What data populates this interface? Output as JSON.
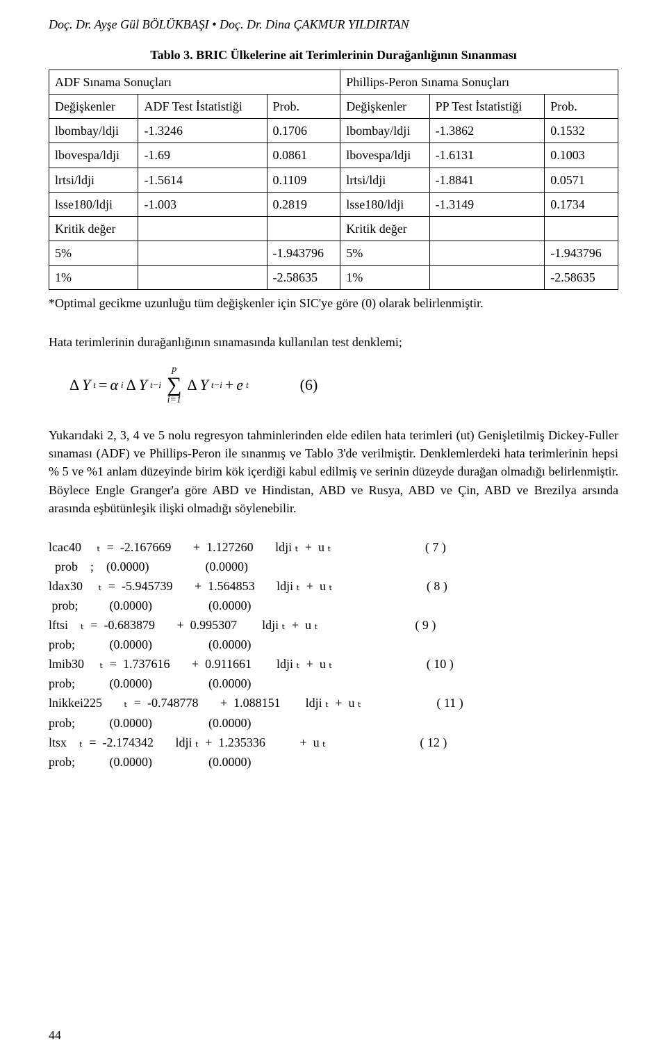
{
  "authors": "Doç. Dr. Ayşe Gül BÖLÜKBAŞI • Doç. Dr. Dina ÇAKMUR YILDIRTAN",
  "table_title": "Tablo 3. BRIC Ülkelerine ait Terimlerinin Durağanlığının Sınanması",
  "table": {
    "type": "table",
    "header_left": "ADF Sınama Sonuçları",
    "header_right": "Phillips-Peron Sınama Sonuçları",
    "columns_left": [
      "Değişkenler",
      "ADF Test İstatistiği",
      "Prob."
    ],
    "columns_right": [
      "Değişkenler",
      "PP Test İstatistiği",
      "Prob."
    ],
    "rows": [
      {
        "l_var": "lbombay/ldji",
        "l_stat": "-1.3246",
        "l_p": "0.1706",
        "r_var": "lbombay/ldji",
        "r_stat": "-1.3862",
        "r_p": "0.1532"
      },
      {
        "l_var": "lbovespa/ldji",
        "l_stat": "-1.69",
        "l_p": "0.0861",
        "r_var": "lbovespa/ldji",
        "r_stat": "-1.6131",
        "r_p": "0.1003"
      },
      {
        "l_var": "lrtsi/ldji",
        "l_stat": "-1.5614",
        "l_p": "0.1109",
        "r_var": "lrtsi/ldji",
        "r_stat": "-1.8841",
        "r_p": "0.0571"
      },
      {
        "l_var": "lsse180/ldji",
        "l_stat": "-1.003",
        "l_p": "0.2819",
        "r_var": "lsse180/ldji",
        "r_stat": "-1.3149",
        "r_p": "0.1734"
      },
      {
        "l_var": "Kritik değer",
        "l_stat": "",
        "l_p": "",
        "r_var": "Kritik değer",
        "r_stat": "",
        "r_p": ""
      },
      {
        "l_var": "5%",
        "l_stat": "",
        "l_p": "-1.943796",
        "r_var": "5%",
        "r_stat": "",
        "r_p": "-1.943796"
      },
      {
        "l_var": "1%",
        "l_stat": "",
        "l_p": "-2.58635",
        "r_var": "1%",
        "r_stat": "",
        "r_p": "-2.58635"
      }
    ]
  },
  "table_note": "*Optimal gecikme uzunluğu tüm değişkenler için SIC'ye göre (0) olarak belirlenmiştir.",
  "para1": "Hata terimlerinin durağanlığının sınamasında kullanılan test denklemi;",
  "equation6": {
    "lhs_dY": "Δ",
    "Y": "Y",
    "t": "t",
    "eq": " = ",
    "alpha": "α",
    "i": "i",
    "dY2": "Δ",
    "tmi": "t−i",
    "sigma_top": "p",
    "sigma_bot": "i=1",
    "dY3": "Δ",
    "plus": " + ",
    "e": "e",
    "num": "(6)"
  },
  "para2": "Yukarıdaki 2, 3, 4 ve 5 nolu regresyon tahminlerinden elde edilen hata terimleri (ut) Genişletilmiş Dickey-Fuller sınaması (ADF) ve Phillips-Peron ile sınanmış ve Tablo 3'de verilmiştir. Denklemlerdeki hata terimlerinin hepsi % 5 ve %1 anlam düzeyinde birim kök içerdiği kabul edilmiş ve serinin düzeyde durağan olmadığı belirlenmiştir. Böylece Engle Granger'a göre ABD ve Hindistan, ABD ve Rusya, ABD ve Çin, ABD ve Brezilya arsında arasında eşbütünleşik ilişki olmadığı söylenebilir.",
  "eqlines": [
    "lcac40     ₜ  =  -2.167669       +  1.127260       ldji ₜ  +  u ₜ                              ( 7 )",
    "  prob    ;    (0.0000)                  (0.0000)",
    "ldax30     ₜ  =  -5.945739       +  1.564853       ldji ₜ  +  u ₜ                              ( 8 )",
    " prob;          (0.0000)                  (0.0000)",
    "lftsi    ₜ  =  -0.683879       +  0.995307        ldji ₜ  +  u ₜ                               ( 9 )",
    "prob;           (0.0000)                  (0.0000)",
    "lmib30     ₜ  =  1.737616       +  0.911661        ldji ₜ  +  u ₜ                              ( 10 )",
    "prob;           (0.0000)                  (0.0000)",
    "lnikkei225       ₜ  =  -0.748778       +  1.088151        ldji ₜ  +  u ₜ                        ( 11 )",
    "prob;           (0.0000)                  (0.0000)",
    "ltsx    ₜ  =  -2.174342       ldji ₜ  +  1.235336           +  u ₜ                              ( 12 )",
    "prob;           (0.0000)                  (0.0000)"
  ],
  "page_number": "44",
  "colors": {
    "text": "#000000",
    "bg": "#ffffff",
    "border": "#000000"
  }
}
